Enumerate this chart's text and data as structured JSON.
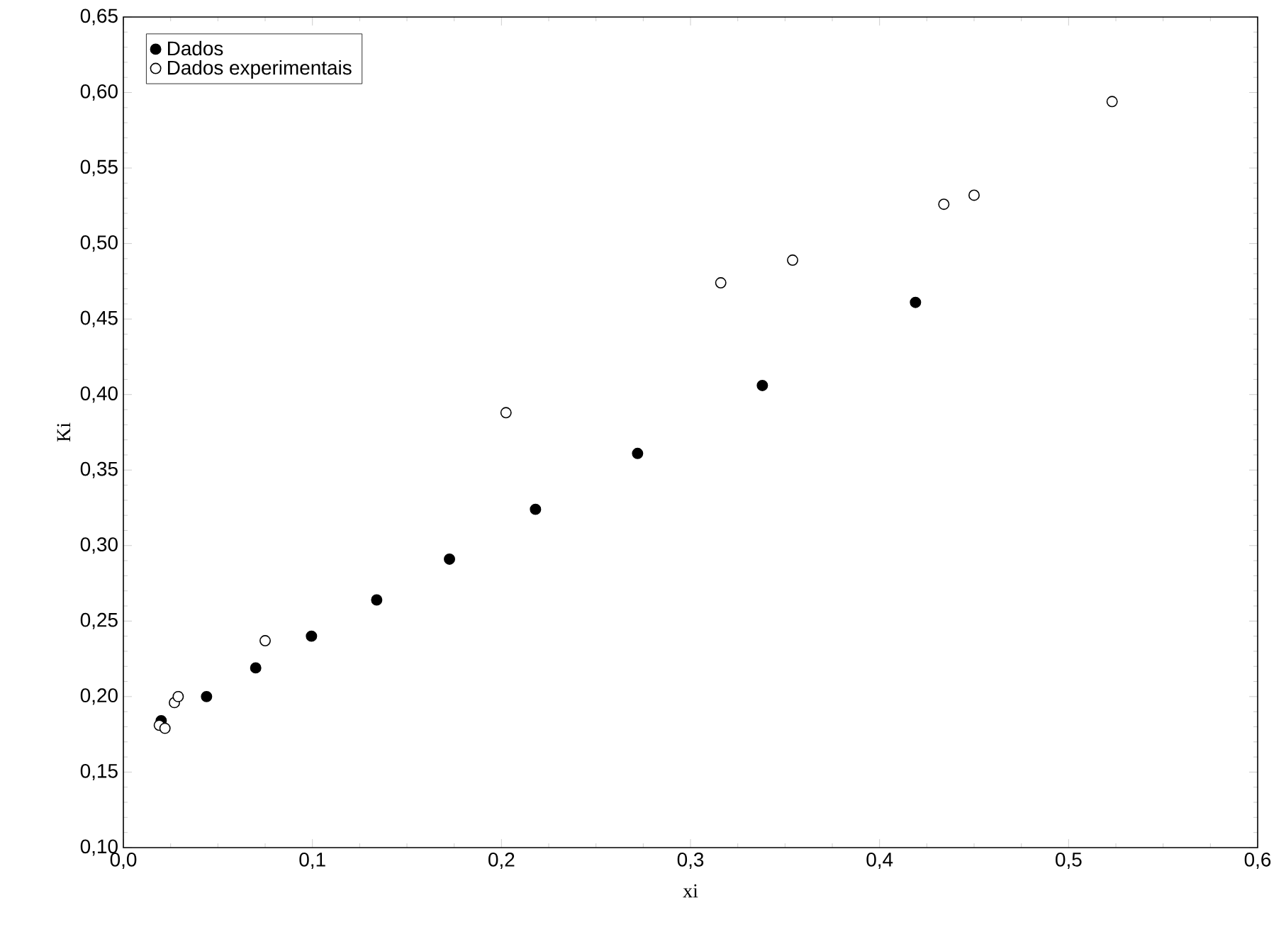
{
  "chart_data": {
    "type": "scatter",
    "xlabel": "xi",
    "ylabel": "Ki",
    "series": [
      {
        "name": "Dados",
        "color": "#000000",
        "x": [
          0.02,
          0.044,
          0.07,
          0.0995,
          0.134,
          0.1725,
          0.218,
          0.272,
          0.338,
          0.419
        ],
        "values": [
          0.184,
          0.2,
          0.219,
          0.24,
          0.264,
          0.291,
          0.324,
          0.361,
          0.406,
          0.461
        ]
      },
      {
        "name": "Dados experimentais",
        "color": "#ffffff",
        "x": [
          0.019,
          0.022,
          0.027,
          0.029,
          0.075,
          0.2024,
          0.316,
          0.354,
          0.434,
          0.45,
          0.523
        ],
        "values": [
          0.181,
          0.179,
          0.196,
          0.2,
          0.237,
          0.388,
          0.474,
          0.489,
          0.526,
          0.532,
          0.594
        ]
      }
    ],
    "xlim": [
      0,
      0.6
    ],
    "ylim": [
      0.1,
      0.65
    ],
    "xticks": [
      {
        "value": 0,
        "label": "0,0"
      },
      {
        "value": 0.1,
        "label": "0,1"
      },
      {
        "value": 0.2,
        "label": "0,2"
      },
      {
        "value": 0.3,
        "label": "0,3"
      },
      {
        "value": 0.4,
        "label": "0,4"
      },
      {
        "value": 0.5,
        "label": "0,5"
      },
      {
        "value": 0.6,
        "label": "0,6"
      }
    ],
    "yticks": [
      {
        "value": 0.1,
        "label": "0,10"
      },
      {
        "value": 0.15,
        "label": "0,15"
      },
      {
        "value": 0.2,
        "label": "0,20"
      },
      {
        "value": 0.25,
        "label": "0,25"
      },
      {
        "value": 0.3,
        "label": "0,30"
      },
      {
        "value": 0.35,
        "label": "0,35"
      },
      {
        "value": 0.4,
        "label": "0,40"
      },
      {
        "value": 0.45,
        "label": "0,45"
      },
      {
        "value": 0.5,
        "label": "0,50"
      },
      {
        "value": 0.55,
        "label": "0,55"
      },
      {
        "value": 0.6,
        "label": "0,60"
      },
      {
        "value": 0.65,
        "label": "0,65"
      }
    ],
    "grid": false,
    "legend": "top left",
    "marker": "circle"
  }
}
